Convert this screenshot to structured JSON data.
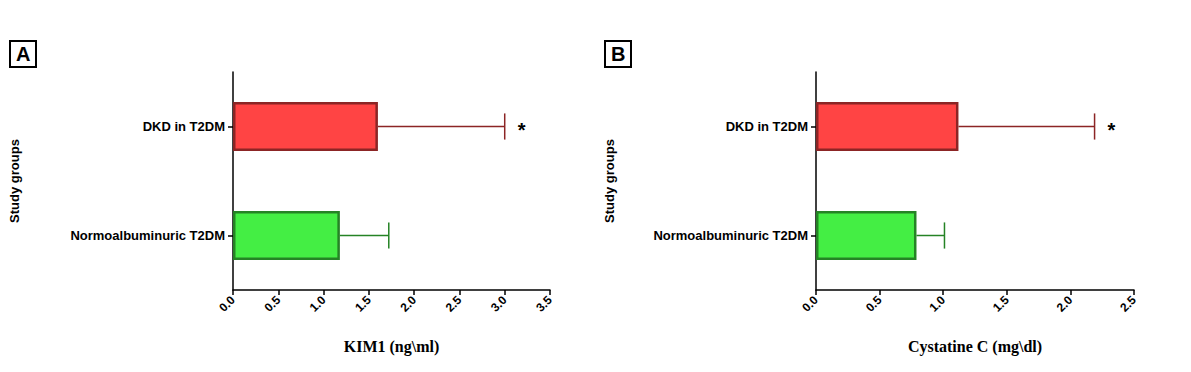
{
  "chart_data": [
    {
      "type": "bar",
      "title": "A",
      "orientation": "horizontal",
      "categories": [
        "Normoalbuminuric T2DM",
        "DKD in T2DM"
      ],
      "values": [
        1.18,
        1.6
      ],
      "errors": [
        0.54,
        1.4
      ],
      "colors": [
        "#44ee44",
        "#ff4444"
      ],
      "xlabel": "KIM1 (ng\\ml)",
      "ylabel": "Study groups",
      "xlim": [
        0,
        3.5
      ],
      "xticks": [
        {
          "value": 0,
          "label": "0.0"
        },
        {
          "value": 0.5,
          "label": "0.5"
        },
        {
          "value": 1,
          "label": "1.0"
        },
        {
          "value": 1.5,
          "label": "1.5"
        },
        {
          "value": 2,
          "label": "2.0"
        },
        {
          "value": 2.5,
          "label": "2.5"
        },
        {
          "value": 3,
          "label": "3.0"
        },
        {
          "value": 3.5,
          "label": "3.5"
        }
      ],
      "grid": false,
      "annotations": [
        {
          "text": "*",
          "category": "DKD in T2DM"
        }
      ]
    },
    {
      "type": "bar",
      "title": "B",
      "orientation": "horizontal",
      "categories": [
        "Normoalbuminuric T2DM",
        "DKD in T2DM"
      ],
      "values": [
        0.79,
        1.12
      ],
      "errors": [
        0.22,
        1.07
      ],
      "colors": [
        "#44ee44",
        "#ff4444"
      ],
      "xlabel": "Cystatine C (mg\\dl)",
      "ylabel": "Study groups",
      "xlim": [
        0,
        2.5
      ],
      "xticks": [
        {
          "value": 0,
          "label": "0.0"
        },
        {
          "value": 0.5,
          "label": "0.5"
        },
        {
          "value": 1,
          "label": "1.0"
        },
        {
          "value": 1.5,
          "label": "1.5"
        },
        {
          "value": 2,
          "label": "2.0"
        },
        {
          "value": 2.5,
          "label": "2.5"
        }
      ],
      "grid": false,
      "annotations": [
        {
          "text": "*",
          "category": "DKD in T2DM"
        }
      ]
    }
  ]
}
